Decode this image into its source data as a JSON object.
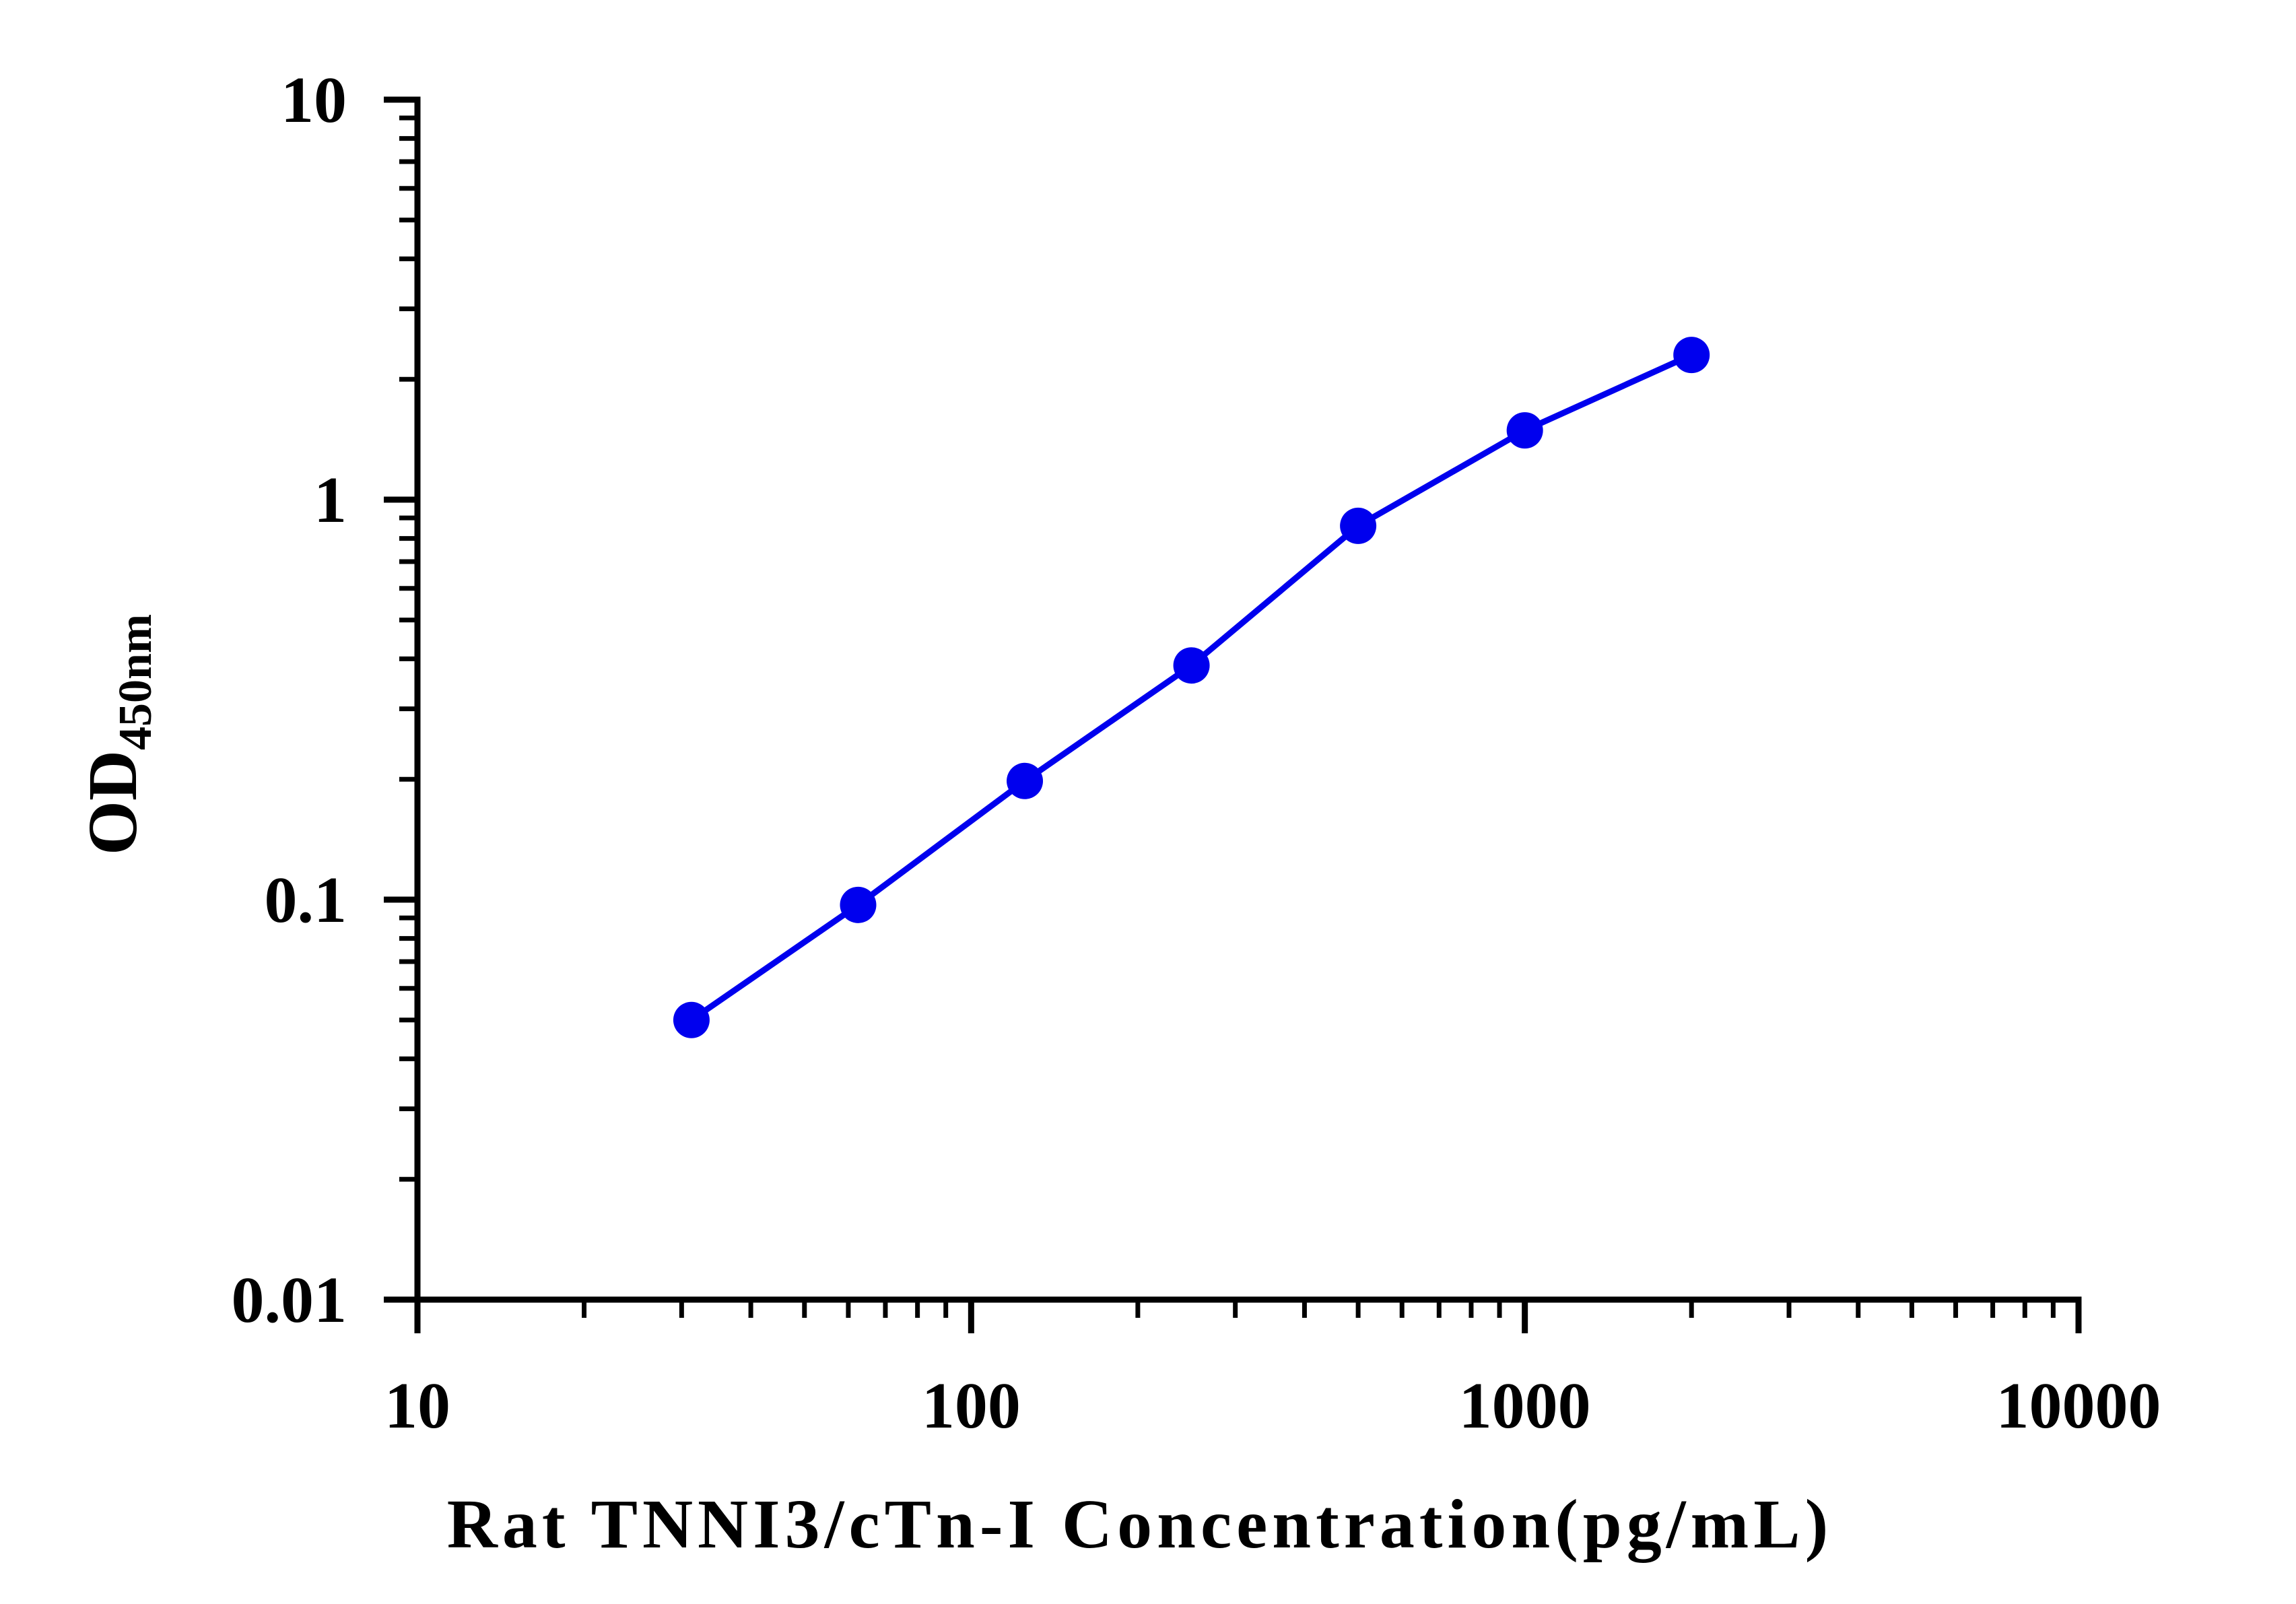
{
  "chart_data": {
    "type": "line",
    "xlabel": "Rat TNNI3/cTn-I Concentration(pg/mL)",
    "ylabel": {
      "main": "OD",
      "sub": "450nm"
    },
    "xscale": "log",
    "yscale": "log",
    "xlim": [
      10,
      10000
    ],
    "ylim": [
      0.01,
      10
    ],
    "x_ticks": [
      "10",
      "100",
      "1000",
      "10000"
    ],
    "y_ticks": [
      "0.01",
      "0.1",
      "1",
      "10"
    ],
    "grid": false,
    "series": [
      {
        "color": "#0000ee",
        "marker": "circle",
        "x": [
          31.25,
          62.5,
          125,
          250,
          500,
          1000,
          2000
        ],
        "y": [
          0.05,
          0.097,
          0.198,
          0.385,
          0.86,
          1.49,
          2.3
        ]
      }
    ]
  }
}
